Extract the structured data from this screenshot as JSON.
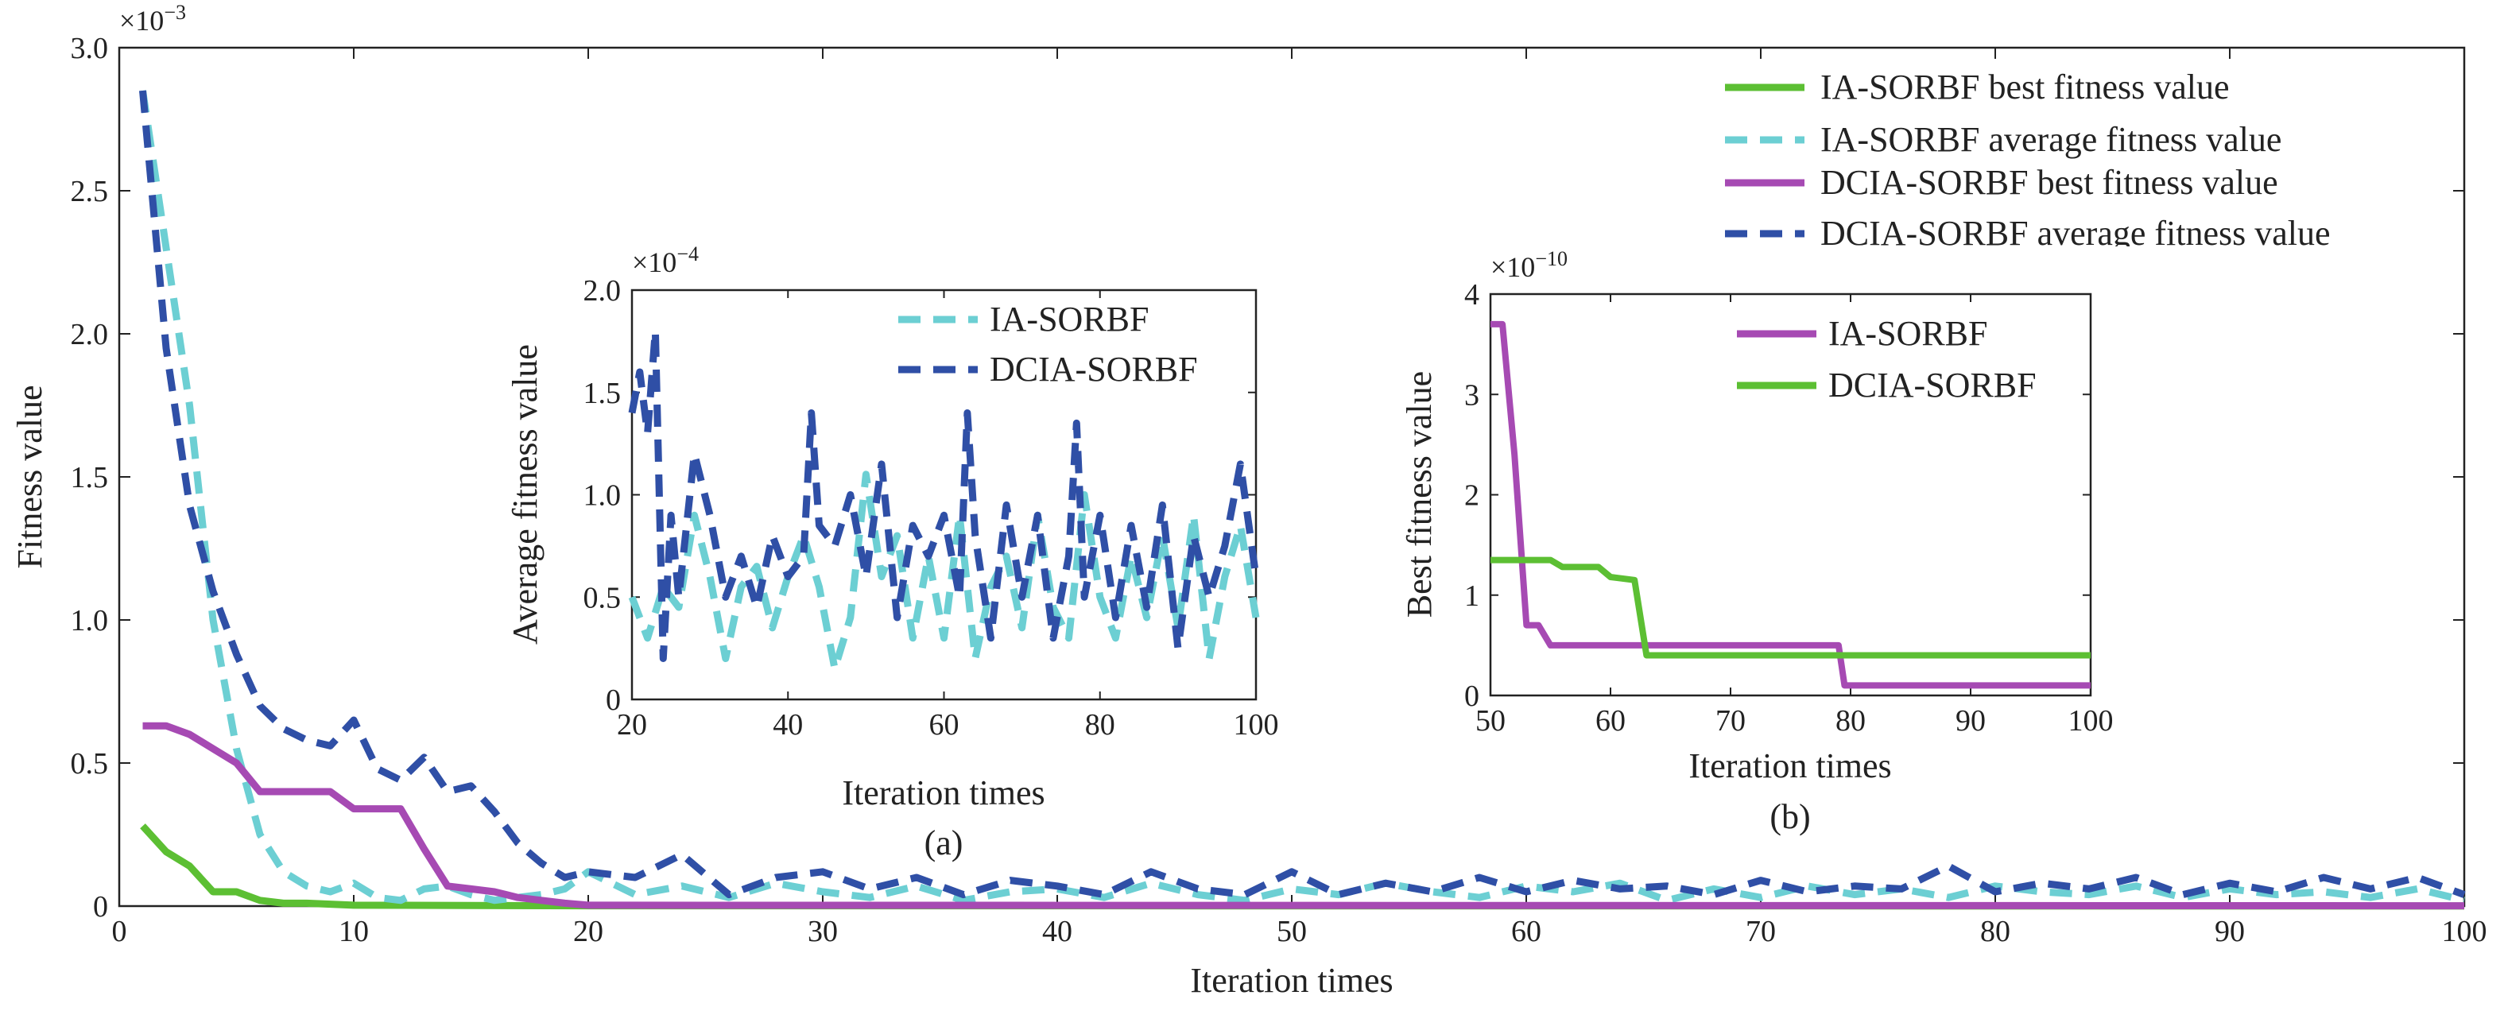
{
  "colors": {
    "ia_best": "#5cbf33",
    "ia_avg": "#6ccfd3",
    "dcia_best": "#a64ab3",
    "dcia_avg": "#2f4fa6"
  },
  "main": {
    "xlabel": "Iteration times",
    "ylabel": "Fitness value",
    "multiplier": "×10",
    "multiplier_exp": "−3",
    "legend": [
      "IA-SORBF best fitness value",
      "IA-SORBF average fitness value",
      "DCIA-SORBF best fitness value",
      "DCIA-SORBF average fitness value"
    ]
  },
  "inset_a": {
    "xlabel": "Iteration times",
    "ylabel": "Average fitness value",
    "caption": "(a)",
    "multiplier": "×10",
    "multiplier_exp": "−4",
    "legend": [
      "IA-SORBF",
      "DCIA-SORBF"
    ]
  },
  "inset_b": {
    "xlabel": "Iteration times",
    "ylabel": "Best fitness value",
    "caption": "(b)",
    "multiplier": "×10",
    "multiplier_exp": "−10",
    "legend": [
      "IA-SORBF",
      "DCIA-SORBF"
    ]
  },
  "chart_data": [
    {
      "type": "line",
      "xlabel": "Iteration times",
      "ylabel": "Fitness value",
      "y_scale_note": "×10^-3",
      "xlim": [
        0,
        100
      ],
      "ylim": [
        0,
        3.0
      ],
      "xticks": [
        "0",
        "10",
        "20",
        "30",
        "40",
        "50",
        "60",
        "70",
        "80",
        "90",
        "100"
      ],
      "yticks": [
        "0",
        "0.5",
        "1.0",
        "1.5",
        "2.0",
        "2.5",
        "3.0"
      ],
      "legend_position": "top-right",
      "series": [
        {
          "name": "IA-SORBF best fitness value",
          "style": "solid",
          "color": "#5cbf33",
          "x": [
            1,
            2,
            3,
            4,
            5,
            6,
            7,
            8,
            10,
            20,
            100
          ],
          "y": [
            0.28,
            0.19,
            0.14,
            0.05,
            0.05,
            0.02,
            0.01,
            0.01,
            0.003,
            0.001,
            0.0004
          ]
        },
        {
          "name": "IA-SORBF average fitness value",
          "style": "dashed",
          "color": "#6ccfd3",
          "x": [
            1,
            2,
            3,
            4,
            5,
            6,
            7,
            8,
            9,
            10,
            11,
            12,
            13,
            14,
            15,
            16,
            17,
            18,
            19,
            20,
            22,
            24,
            26,
            28,
            30,
            32,
            34,
            36,
            38,
            40,
            42,
            44,
            46,
            48,
            50,
            52,
            54,
            56,
            58,
            60,
            62,
            64,
            66,
            68,
            70,
            72,
            74,
            76,
            78,
            80,
            82,
            84,
            86,
            88,
            90,
            92,
            94,
            96,
            98,
            100
          ],
          "y": [
            2.85,
            2.3,
            1.75,
            1.0,
            0.55,
            0.25,
            0.12,
            0.07,
            0.05,
            0.08,
            0.03,
            0.02,
            0.06,
            0.07,
            0.04,
            0.02,
            0.03,
            0.04,
            0.06,
            0.12,
            0.04,
            0.07,
            0.03,
            0.08,
            0.05,
            0.03,
            0.07,
            0.02,
            0.05,
            0.06,
            0.03,
            0.08,
            0.04,
            0.02,
            0.06,
            0.04,
            0.08,
            0.05,
            0.03,
            0.07,
            0.05,
            0.08,
            0.02,
            0.06,
            0.03,
            0.07,
            0.04,
            0.06,
            0.03,
            0.07,
            0.05,
            0.04,
            0.07,
            0.03,
            0.06,
            0.04,
            0.05,
            0.03,
            0.06,
            0.02
          ]
        },
        {
          "name": "DCIA-SORBF best fitness value",
          "style": "solid",
          "color": "#a64ab3",
          "x": [
            1,
            2,
            3,
            4,
            5,
            6,
            7,
            8,
            9,
            10,
            11,
            12,
            13,
            14,
            15,
            16,
            17,
            18,
            19,
            20,
            100
          ],
          "y": [
            0.63,
            0.63,
            0.6,
            0.55,
            0.5,
            0.4,
            0.4,
            0.4,
            0.4,
            0.34,
            0.34,
            0.34,
            0.2,
            0.07,
            0.06,
            0.05,
            0.03,
            0.02,
            0.01,
            0.003,
            0.001
          ]
        },
        {
          "name": "DCIA-SORBF average fitness value",
          "style": "dashed",
          "color": "#2f4fa6",
          "x": [
            1,
            2,
            3,
            4,
            5,
            6,
            7,
            8,
            9,
            10,
            11,
            12,
            13,
            14,
            15,
            16,
            17,
            18,
            19,
            20,
            22,
            24,
            26,
            28,
            30,
            32,
            34,
            36,
            38,
            40,
            42,
            44,
            46,
            48,
            50,
            52,
            54,
            56,
            58,
            60,
            62,
            64,
            66,
            68,
            70,
            72,
            74,
            76,
            78,
            80,
            82,
            84,
            86,
            88,
            90,
            92,
            94,
            96,
            98,
            100
          ],
          "y": [
            2.85,
            1.95,
            1.4,
            1.1,
            0.88,
            0.7,
            0.62,
            0.58,
            0.56,
            0.65,
            0.48,
            0.44,
            0.52,
            0.4,
            0.42,
            0.33,
            0.22,
            0.15,
            0.1,
            0.12,
            0.1,
            0.18,
            0.04,
            0.1,
            0.12,
            0.06,
            0.1,
            0.04,
            0.09,
            0.07,
            0.04,
            0.12,
            0.06,
            0.04,
            0.12,
            0.04,
            0.08,
            0.05,
            0.1,
            0.05,
            0.09,
            0.06,
            0.07,
            0.04,
            0.09,
            0.05,
            0.07,
            0.06,
            0.14,
            0.05,
            0.08,
            0.06,
            0.1,
            0.04,
            0.08,
            0.05,
            0.1,
            0.06,
            0.1,
            0.04
          ]
        }
      ]
    },
    {
      "type": "line",
      "title": "(a)",
      "xlabel": "Iteration times",
      "ylabel": "Average fitness value",
      "y_scale_note": "×10^-4",
      "xlim": [
        20,
        100
      ],
      "ylim": [
        0,
        2.0
      ],
      "xticks": [
        "20",
        "40",
        "60",
        "80",
        "100"
      ],
      "yticks": [
        "0",
        "0.5",
        "1.0",
        "1.5",
        "2.0"
      ],
      "legend_position": "top-right",
      "series": [
        {
          "name": "IA-SORBF",
          "style": "dashed",
          "color": "#6ccfd3",
          "x": [
            20,
            22,
            24,
            26,
            28,
            30,
            32,
            34,
            36,
            38,
            40,
            42,
            44,
            46,
            48,
            50,
            52,
            54,
            56,
            58,
            60,
            62,
            64,
            66,
            68,
            70,
            72,
            74,
            76,
            78,
            80,
            82,
            84,
            86,
            88,
            90,
            92,
            94,
            96,
            98,
            100
          ],
          "y": [
            0.5,
            0.3,
            0.55,
            0.45,
            0.9,
            0.6,
            0.2,
            0.55,
            0.65,
            0.35,
            0.6,
            0.8,
            0.55,
            0.15,
            0.4,
            1.1,
            0.6,
            0.8,
            0.3,
            0.7,
            0.3,
            0.9,
            0.2,
            0.55,
            0.7,
            0.35,
            0.9,
            0.45,
            0.3,
            1.0,
            0.5,
            0.3,
            0.7,
            0.4,
            0.8,
            0.35,
            0.9,
            0.2,
            0.6,
            0.85,
            0.4
          ]
        },
        {
          "name": "DCIA-SORBF",
          "style": "dashed",
          "color": "#2f4fa6",
          "x": [
            20,
            21,
            22,
            23,
            24,
            25,
            26,
            28,
            30,
            32,
            34,
            36,
            38,
            40,
            42,
            43,
            44,
            46,
            48,
            50,
            52,
            54,
            56,
            58,
            60,
            62,
            63,
            64,
            66,
            68,
            70,
            72,
            74,
            76,
            77,
            78,
            80,
            82,
            84,
            86,
            88,
            90,
            92,
            94,
            96,
            98,
            100
          ],
          "y": [
            1.4,
            1.6,
            1.3,
            1.8,
            0.2,
            0.9,
            0.5,
            1.2,
            0.9,
            0.5,
            0.7,
            0.45,
            0.8,
            0.6,
            0.7,
            1.4,
            0.85,
            0.75,
            1.0,
            0.6,
            1.15,
            0.4,
            0.85,
            0.7,
            0.9,
            0.5,
            1.4,
            0.8,
            0.3,
            0.95,
            0.5,
            0.9,
            0.3,
            0.7,
            1.35,
            0.5,
            0.9,
            0.4,
            0.85,
            0.45,
            0.95,
            0.25,
            0.8,
            0.5,
            0.75,
            1.15,
            0.6
          ]
        }
      ]
    },
    {
      "type": "line",
      "title": "(b)",
      "xlabel": "Iteration times",
      "ylabel": "Best fitness value",
      "y_scale_note": "×10^-10",
      "xlim": [
        50,
        100
      ],
      "ylim": [
        0,
        4
      ],
      "xticks": [
        "50",
        "60",
        "70",
        "80",
        "90",
        "100"
      ],
      "yticks": [
        "0",
        "1",
        "2",
        "3",
        "4"
      ],
      "legend_position": "top-right",
      "series": [
        {
          "name": "IA-SORBF",
          "style": "solid",
          "color": "#a64ab3",
          "x": [
            50,
            51,
            52,
            53,
            54,
            55,
            56,
            60,
            79,
            79.5,
            80,
            100
          ],
          "y": [
            3.7,
            3.7,
            2.4,
            0.7,
            0.7,
            0.5,
            0.5,
            0.5,
            0.5,
            0.1,
            0.1,
            0.1
          ]
        },
        {
          "name": "DCIA-SORBF",
          "style": "solid",
          "color": "#5cbf33",
          "x": [
            50,
            55,
            56,
            59,
            60,
            62,
            63,
            100
          ],
          "y": [
            1.35,
            1.35,
            1.28,
            1.28,
            1.18,
            1.15,
            0.4,
            0.4
          ]
        }
      ]
    }
  ]
}
